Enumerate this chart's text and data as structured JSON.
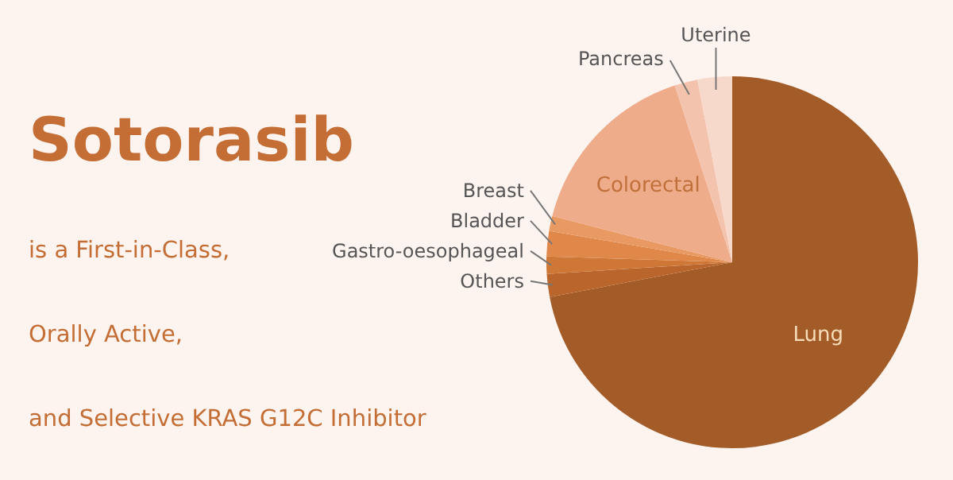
{
  "chart_data": {
    "type": "pie",
    "title": "Sotorasib",
    "annotations": [
      "is a First-in-Class,",
      "Orally Active,",
      "and Selective KRAS G12C Inhibitor"
    ],
    "categories": [
      "Lung",
      "Others",
      "Gastro-oesophageal",
      "Bladder",
      "Breast",
      "Colorectal",
      "Pancreas",
      "Uterine"
    ],
    "values": [
      72,
      2,
      1.5,
      2.2,
      1.3,
      16,
      2,
      3
    ],
    "colors": [
      "#a35b27",
      "#b9652c",
      "#cf7736",
      "#e0884a",
      "#e89a62",
      "#eeac8a",
      "#f3c3ae",
      "#f7d9cc"
    ]
  }
}
